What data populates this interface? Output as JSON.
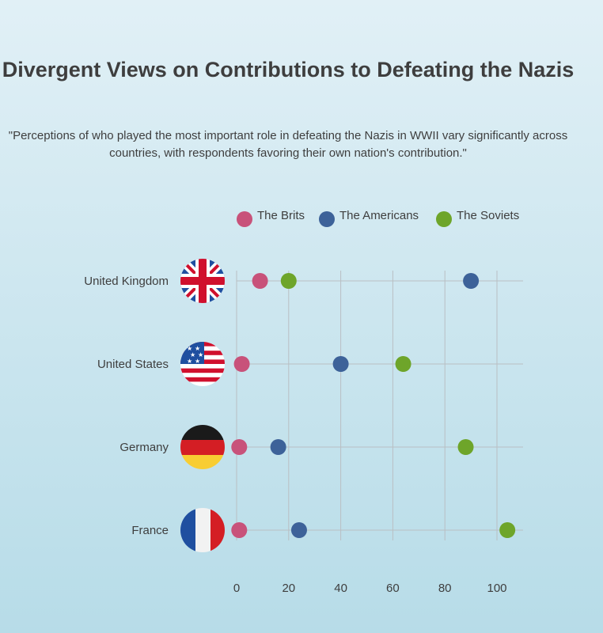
{
  "title": "Divergent Views on Contributions to Defeating the Nazis",
  "subtitle": "\"Perceptions of who played the most important role in defeating the Nazis in WWII vary significantly across countries, with respondents favoring their own nation's contribution.\"",
  "colors": {
    "brits": "#c8527a",
    "americans": "#3d6299",
    "soviets": "#6ea52a",
    "grid": "#b9bfc3"
  },
  "chart_data": {
    "type": "scatter",
    "title": "Divergent Views on Contributions to Defeating the Nazis",
    "categories": [
      "United Kingdom",
      "United States",
      "Germany",
      "France"
    ],
    "xlim": [
      0,
      110
    ],
    "x_ticks": [
      0,
      20,
      40,
      60,
      80,
      100
    ],
    "grid": true,
    "legend_position": "top-right",
    "series": [
      {
        "name": "The Brits",
        "key": "brits",
        "values": [
          9,
          2,
          1,
          1
        ]
      },
      {
        "name": "The Americans",
        "key": "americans",
        "values": [
          90,
          40,
          16,
          24
        ]
      },
      {
        "name": "The Soviets",
        "key": "soviets",
        "values": [
          20,
          64,
          88,
          104
        ]
      }
    ],
    "flags": [
      "uk-flag-icon",
      "us-flag-icon",
      "germany-flag-icon",
      "france-flag-icon"
    ]
  }
}
